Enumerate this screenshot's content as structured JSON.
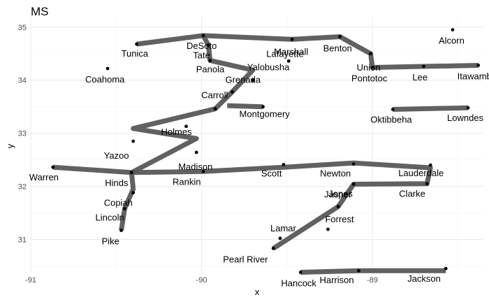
{
  "chart_data": {
    "type": "scatter",
    "title": "MS",
    "xlabel": "x",
    "ylabel": "y",
    "xlim": [
      -91.0,
      -88.35
    ],
    "ylim": [
      30.4,
      35.05
    ],
    "xticks": [
      -91,
      -90,
      -89
    ],
    "yticks": [
      31,
      32,
      33,
      34,
      35
    ],
    "xtick_labels": [
      "-91",
      "-90",
      "-89"
    ],
    "ytick_labels": [
      "31",
      "32",
      "33",
      "34",
      "35"
    ],
    "grid": true,
    "points": [
      {
        "name": "Alcorn",
        "x": -88.53,
        "y": 34.95,
        "dx": -20,
        "dy": 20
      },
      {
        "name": "Tunica",
        "x": -90.38,
        "y": 34.68,
        "dx": -22,
        "dy": 18
      },
      {
        "name": "DeSoto",
        "x": -89.99,
        "y": 34.84,
        "dx": -24,
        "dy": 19
      },
      {
        "name": "Marshall",
        "x": -89.47,
        "y": 34.77,
        "dx": -26,
        "dy": 22
      },
      {
        "name": "Benton",
        "x": -89.19,
        "y": 34.82,
        "dx": -24,
        "dy": 21
      },
      {
        "name": "Tate",
        "x": -89.96,
        "y": 34.66,
        "dx": -22,
        "dy": 19
      },
      {
        "name": "Union",
        "x": -89.01,
        "y": 34.5,
        "dx": -20,
        "dy": 24
      },
      {
        "name": "Coahoma",
        "x": -90.55,
        "y": 34.22,
        "dx": -32,
        "dy": 20
      },
      {
        "name": "Panola",
        "x": -89.95,
        "y": 34.37,
        "dx": -20,
        "dy": 17
      },
      {
        "name": "Pontotoc",
        "x": -89.0,
        "y": 34.24,
        "dx": -30,
        "dy": 20
      },
      {
        "name": "Lee",
        "x": -88.7,
        "y": 34.26,
        "dx": -16,
        "dy": 20
      },
      {
        "name": "Itawamba",
        "x": -88.38,
        "y": 34.28,
        "dx": -30,
        "dy": 20
      },
      {
        "name": "Lafayette",
        "x": -89.49,
        "y": 34.36,
        "dx": -32,
        "dy": -6
      },
      {
        "name": "Yalobusha",
        "x": -89.7,
        "y": 34.0,
        "dx": -8,
        "dy": -14
      },
      {
        "name": "Grenada",
        "x": -89.82,
        "y": 33.78,
        "dx": -10,
        "dy": -13
      },
      {
        "name": "Carroll",
        "x": -89.92,
        "y": 33.46,
        "dx": -20,
        "dy": -15
      },
      {
        "name": "Montgomery",
        "x": -89.64,
        "y": 33.5,
        "dx": -34,
        "dy": 15
      },
      {
        "name": "Oktibbeha",
        "x": -88.88,
        "y": 33.45,
        "dx": -32,
        "dy": 19
      },
      {
        "name": "Lowndes",
        "x": -88.44,
        "y": 33.48,
        "dx": -30,
        "dy": 19
      },
      {
        "name": "Holmes",
        "x": -90.09,
        "y": 33.13,
        "dx": -36,
        "dy": 12
      },
      {
        "name": "Yazoo",
        "x": -90.4,
        "y": 32.85,
        "dx": -42,
        "dy": 25
      },
      {
        "name": "Madison",
        "x": -90.03,
        "y": 32.64,
        "dx": -26,
        "dy": 25
      },
      {
        "name": "Warren",
        "x": -90.87,
        "y": 32.36,
        "dx": -34,
        "dy": 19
      },
      {
        "name": "Hinds",
        "x": -90.41,
        "y": 32.26,
        "dx": -38,
        "dy": 19
      },
      {
        "name": "Rankin",
        "x": -89.99,
        "y": 32.28,
        "dx": -44,
        "dy": 19
      },
      {
        "name": "Scott",
        "x": -89.52,
        "y": 32.41,
        "dx": -32,
        "dy": 17
      },
      {
        "name": "Newton",
        "x": -89.11,
        "y": 32.42,
        "dx": -48,
        "dy": 18
      },
      {
        "name": "Lauderdale",
        "x": -88.66,
        "y": 32.4,
        "dx": -46,
        "dy": 16
      },
      {
        "name": "Clarke",
        "x": -88.68,
        "y": 32.05,
        "dx": -40,
        "dy": 19
      },
      {
        "name": "Jasper",
        "x": -89.11,
        "y": 32.04,
        "dx": -42,
        "dy": 19
      },
      {
        "name": "Copiah",
        "x": -90.4,
        "y": 31.88,
        "dx": -42,
        "dy": 19
      },
      {
        "name": "Lincoln",
        "x": -90.45,
        "y": 31.58,
        "dx": -42,
        "dy": 17
      },
      {
        "name": "Jones",
        "x": -89.2,
        "y": 31.62,
        "dx": -14,
        "dy": -14
      },
      {
        "name": "Forrest",
        "x": -89.26,
        "y": 31.19,
        "dx": -4,
        "dy": -10
      },
      {
        "name": "Pike",
        "x": -90.47,
        "y": 31.17,
        "dx": -28,
        "dy": 20
      },
      {
        "name": "Lamar",
        "x": -89.54,
        "y": 31.02,
        "dx": -14,
        "dy": -10
      },
      {
        "name": "Pearl River",
        "x": -89.58,
        "y": 30.83,
        "dx": -72,
        "dy": 20
      },
      {
        "name": "Hancock",
        "x": -89.42,
        "y": 30.38,
        "dx": -28,
        "dy": 20
      },
      {
        "name": "Harrison",
        "x": -89.08,
        "y": 30.41,
        "dx": -56,
        "dy": 18
      },
      {
        "name": "Jackson",
        "x": -88.57,
        "y": 30.45,
        "dx": -55,
        "dy": 19
      }
    ],
    "paths": [
      {
        "coords": [
          [
            -90.38,
            34.68
          ],
          [
            -89.99,
            34.84
          ],
          [
            -89.47,
            34.77
          ],
          [
            -89.19,
            34.82
          ],
          [
            -89.01,
            34.5
          ],
          [
            -89.0,
            34.24
          ],
          [
            -88.7,
            34.26
          ],
          [
            -88.38,
            34.28
          ]
        ]
      },
      {
        "coords": [
          [
            -89.99,
            34.84
          ],
          [
            -89.96,
            34.66
          ],
          [
            -89.95,
            34.37
          ],
          [
            -89.7,
            34.19
          ],
          [
            -89.82,
            33.78
          ],
          [
            -89.92,
            33.46
          ],
          [
            -90.4,
            33.09
          ],
          [
            -90.03,
            32.9
          ],
          [
            -90.41,
            32.26
          ],
          [
            -90.87,
            32.36
          ]
        ]
      },
      {
        "coords": [
          [
            -89.85,
            33.52
          ],
          [
            -89.64,
            33.5
          ]
        ]
      },
      {
        "coords": [
          [
            -88.88,
            33.45
          ],
          [
            -88.44,
            33.48
          ]
        ]
      },
      {
        "coords": [
          [
            -90.41,
            32.26
          ],
          [
            -89.99,
            32.28
          ],
          [
            -89.52,
            32.36
          ],
          [
            -89.11,
            32.44
          ],
          [
            -88.66,
            32.35
          ],
          [
            -88.68,
            32.05
          ],
          [
            -89.11,
            32.04
          ],
          [
            -89.2,
            31.62
          ],
          [
            -89.58,
            30.83
          ]
        ]
      },
      {
        "coords": [
          [
            -90.41,
            32.26
          ],
          [
            -90.4,
            31.95
          ],
          [
            -90.45,
            31.58
          ],
          [
            -90.47,
            31.17
          ]
        ]
      },
      {
        "coords": [
          [
            -89.42,
            30.38
          ],
          [
            -89.08,
            30.41
          ],
          [
            -88.57,
            30.41
          ]
        ]
      }
    ]
  }
}
